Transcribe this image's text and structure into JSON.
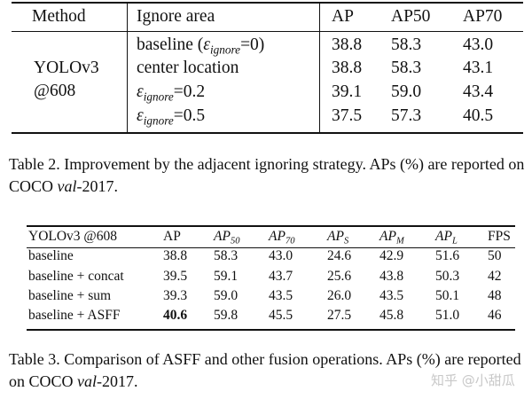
{
  "table2": {
    "headers": [
      "Method",
      "Ignore area",
      "AP",
      "AP50",
      "AP70"
    ],
    "method_line1": "YOLOv3",
    "method_line2": "@608",
    "rows": [
      {
        "area_prefix": "baseline (",
        "area_sym": "ε",
        "area_sub": "ignore",
        "area_suffix": "=0)",
        "ap": "38.8",
        "ap50": "58.3",
        "ap70": "43.0"
      },
      {
        "area_text": "center location",
        "ap": "38.8",
        "ap50": "58.3",
        "ap70": "43.1"
      },
      {
        "area_sym": "ε",
        "area_sub": "ignore",
        "area_suffix": "=0.2",
        "ap": "39.1",
        "ap50": "59.0",
        "ap70": "43.4"
      },
      {
        "area_sym": "ε",
        "area_sub": "ignore",
        "area_suffix": "=0.5",
        "ap": "37.5",
        "ap50": "57.3",
        "ap70": "40.5"
      }
    ],
    "caption": {
      "prefix": "Table 2. Improvement by the adjacent ignoring strategy. APs (%) are reported on COCO ",
      "italic": "val",
      "suffix": "-2017."
    }
  },
  "table3": {
    "header_method": "YOLOv3 @608",
    "header_ap": "AP",
    "header_ap_base": "AP",
    "header_subs": [
      "50",
      "70",
      "S",
      "M",
      "L"
    ],
    "header_fps": "FPS",
    "rows": [
      {
        "method": "baseline",
        "ap": "38.8",
        "ap50": "58.3",
        "ap70": "43.0",
        "aps": "24.6",
        "apm": "42.9",
        "apl": "51.6",
        "fps": "50"
      },
      {
        "method": "baseline + concat",
        "ap": "39.5",
        "ap50": "59.1",
        "ap70": "43.7",
        "aps": "25.6",
        "apm": "43.8",
        "apl": "50.3",
        "fps": "42"
      },
      {
        "method": "baseline + sum",
        "ap": "39.3",
        "ap50": "59.0",
        "ap70": "43.5",
        "aps": "26.0",
        "apm": "43.5",
        "apl": "50.1",
        "fps": "48"
      },
      {
        "method": "baseline + ASFF",
        "ap": "40.6",
        "ap50": "59.8",
        "ap70": "45.5",
        "aps": "27.5",
        "apm": "45.8",
        "apl": "51.0",
        "fps": "46"
      }
    ],
    "caption": {
      "prefix": "Table 3. Comparison of ASFF and other fusion operations. APs (%) are reported on COCO ",
      "italic": "val",
      "suffix": "-2017."
    }
  },
  "watermark": "知乎 @小甜瓜"
}
